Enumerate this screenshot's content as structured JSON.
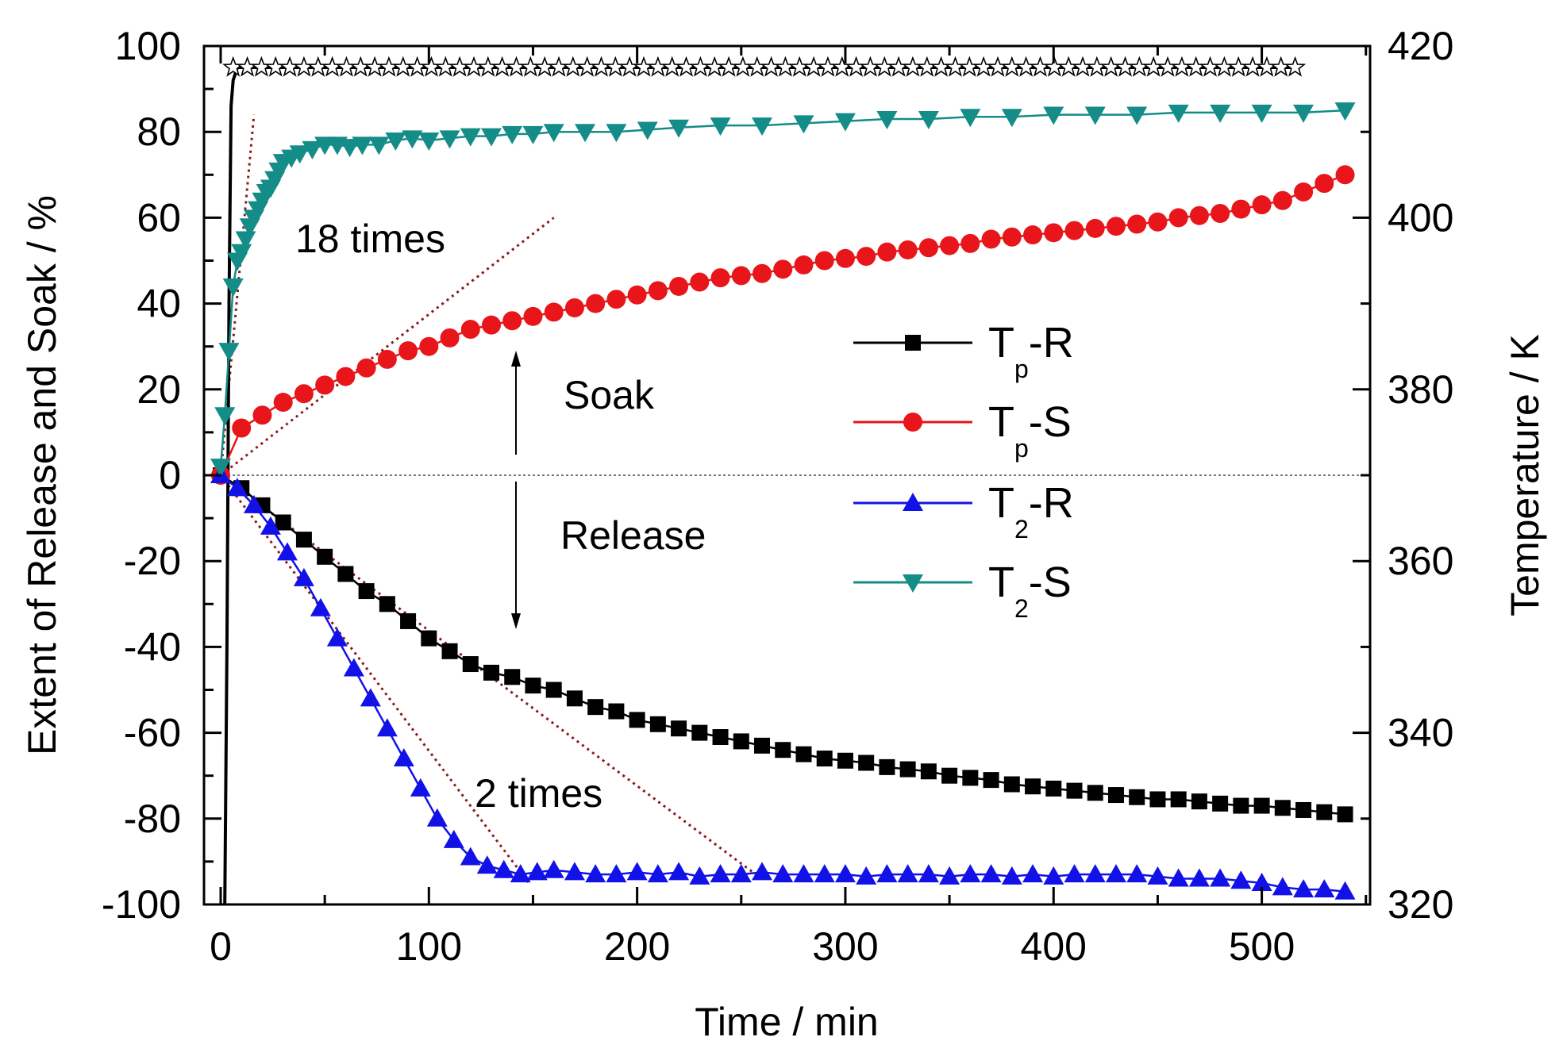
{
  "chart_data": {
    "type": "line",
    "title": "",
    "xlabel": "Time / min",
    "ylabel": "Extent of Release and Soak / %",
    "y2label": "Temperature / K",
    "xlim": [
      -8,
      552
    ],
    "ylim": [
      -100,
      100
    ],
    "y2lim": [
      320,
      420
    ],
    "xticks": [
      "0",
      "100",
      "200",
      "300",
      "400",
      "500"
    ],
    "yticks": [
      "100",
      "80",
      "60",
      "40",
      "20",
      "0",
      "-20",
      "-40",
      "-60",
      "-80",
      "-100"
    ],
    "y2ticks": [
      "420",
      "400",
      "380",
      "360",
      "340",
      "320"
    ],
    "grid": false,
    "zero_line": 0,
    "legend": {
      "position": "center-right",
      "entries": [
        {
          "main": "T",
          "sub": "p",
          "tail": "-R",
          "color": "#000000",
          "marker": "square"
        },
        {
          "main": "T",
          "sub": "p",
          "tail": "-S",
          "color": "#e8161b",
          "marker": "circle"
        },
        {
          "main": "T",
          "sub": "2",
          "tail": "-R",
          "color": "#1212e8",
          "marker": "triangle-up"
        },
        {
          "main": "T",
          "sub": "2",
          "tail": "-S",
          "color": "#148c88",
          "marker": "triangle-down"
        }
      ]
    },
    "annotations": {
      "times18": "18 times",
      "times2": "2 times",
      "soak": "Soak",
      "release": "Release"
    },
    "guide_lines": [
      {
        "name": "soak-initial-slope",
        "color": "#8b1a1a",
        "from": [
          0,
          0
        ],
        "to": [
          160,
          60
        ]
      },
      {
        "name": "soak-steep-slope",
        "color": "#8b1a1a",
        "from": [
          0,
          0
        ],
        "to": [
          16,
          84
        ]
      },
      {
        "name": "release-tp-slope",
        "color": "#8b1a1a",
        "from": [
          0,
          0
        ],
        "to": [
          257,
          -93
        ]
      },
      {
        "name": "release-t2-slope",
        "color": "#8b1a1a",
        "from": [
          0,
          0
        ],
        "to": [
          148,
          -95
        ]
      }
    ],
    "temperature_series": {
      "name": "Temperature",
      "marker": "star",
      "color": "#000000",
      "x_start": 6,
      "x_step": 6.8,
      "x_end": 516,
      "temperature_K": 417.5,
      "ramp": [
        [
          2,
          320
        ],
        [
          3,
          350
        ],
        [
          4,
          390
        ],
        [
          5,
          413
        ],
        [
          6,
          416
        ],
        [
          8,
          417.5
        ]
      ]
    },
    "series": [
      {
        "name": "Tp-R",
        "color": "#000000",
        "marker": "square",
        "x": [
          0,
          10,
          20,
          30,
          40,
          50,
          60,
          70,
          80,
          90,
          100,
          110,
          120,
          130,
          140,
          150,
          160,
          170,
          180,
          190,
          200,
          210,
          220,
          230,
          240,
          250,
          260,
          270,
          280,
          290,
          300,
          310,
          320,
          330,
          340,
          350,
          360,
          370,
          380,
          390,
          400,
          410,
          420,
          430,
          440,
          450,
          460,
          470,
          480,
          490,
          500,
          510,
          520,
          530,
          540
        ],
        "values": [
          0,
          -3,
          -7,
          -11,
          -15,
          -19,
          -23,
          -27,
          -30,
          -34,
          -38,
          -41,
          -44,
          -46,
          -47,
          -49,
          -50,
          -52,
          -54,
          -55,
          -57,
          -58,
          -59,
          -60,
          -61,
          -62,
          -63,
          -64,
          -65,
          -66,
          -66.5,
          -67,
          -68,
          -68.5,
          -69,
          -70,
          -70.5,
          -71,
          -72,
          -72.5,
          -73,
          -73.5,
          -74,
          -74.5,
          -75,
          -75.5,
          -75.5,
          -76,
          -76.5,
          -77,
          -77,
          -77.5,
          -78,
          -78.5,
          -79
        ]
      },
      {
        "name": "Tp-S",
        "color": "#e8161b",
        "marker": "circle",
        "x": [
          0,
          10,
          20,
          30,
          40,
          50,
          60,
          70,
          80,
          90,
          100,
          110,
          120,
          130,
          140,
          150,
          160,
          170,
          180,
          190,
          200,
          210,
          220,
          230,
          240,
          250,
          260,
          270,
          280,
          290,
          300,
          310,
          320,
          330,
          340,
          350,
          360,
          370,
          380,
          390,
          400,
          410,
          420,
          430,
          440,
          450,
          460,
          470,
          480,
          490,
          500,
          510,
          520,
          530,
          540
        ],
        "values": [
          0,
          11,
          14,
          17,
          19,
          21,
          23,
          25,
          27,
          29,
          30,
          32,
          34,
          35,
          36,
          37,
          38,
          39,
          40,
          41,
          42,
          43,
          44,
          45,
          46,
          46.5,
          47,
          48,
          49,
          50,
          50.5,
          51,
          52,
          52.5,
          53,
          53.5,
          54,
          55,
          55.5,
          56,
          56.5,
          57,
          57.5,
          58,
          58.5,
          59,
          60,
          60.5,
          61,
          62,
          63,
          64,
          66,
          68,
          70
        ]
      },
      {
        "name": "T2-R",
        "color": "#1212e8",
        "marker": "triangle-up",
        "x": [
          0,
          8,
          16,
          24,
          32,
          40,
          48,
          56,
          64,
          72,
          80,
          88,
          96,
          104,
          112,
          120,
          128,
          136,
          144,
          152,
          160,
          170,
          180,
          190,
          200,
          210,
          220,
          230,
          240,
          250,
          260,
          270,
          280,
          290,
          300,
          310,
          320,
          330,
          340,
          350,
          360,
          370,
          380,
          390,
          400,
          410,
          420,
          430,
          440,
          450,
          460,
          470,
          480,
          490,
          500,
          510,
          520,
          530,
          540
        ],
        "values": [
          0,
          -3,
          -7,
          -12,
          -18,
          -24,
          -31,
          -38,
          -45,
          -52,
          -59,
          -66,
          -73,
          -80,
          -85,
          -89,
          -91,
          -92,
          -93,
          -92.5,
          -92,
          -92.5,
          -93,
          -93,
          -92.5,
          -93,
          -92.5,
          -93.5,
          -93,
          -93,
          -92.5,
          -93,
          -93,
          -93,
          -93,
          -93.5,
          -93,
          -93,
          -93,
          -93.5,
          -93,
          -93,
          -93.5,
          -93,
          -93.5,
          -93,
          -93,
          -93,
          -93,
          -93.5,
          -94,
          -94,
          -94,
          -94.5,
          -95,
          -96,
          -96.5,
          -96.5,
          -97
        ]
      },
      {
        "name": "T2-S",
        "color": "#148c88",
        "marker": "triangle-down",
        "x": [
          0,
          2,
          4,
          6,
          8,
          10,
          12,
          14,
          16,
          18,
          20,
          22,
          24,
          26,
          28,
          30,
          34,
          38,
          44,
          50,
          56,
          62,
          68,
          76,
          84,
          92,
          100,
          110,
          120,
          130,
          140,
          150,
          160,
          175,
          190,
          205,
          220,
          240,
          260,
          280,
          300,
          320,
          340,
          360,
          380,
          400,
          420,
          440,
          460,
          480,
          500,
          520,
          540
        ],
        "values": [
          2,
          14,
          29,
          44,
          50,
          52,
          55,
          58,
          60,
          62,
          64,
          66,
          67,
          69,
          71,
          73,
          74,
          75,
          76,
          77,
          77,
          76.5,
          77,
          77,
          78,
          78.5,
          78,
          78.5,
          79,
          79,
          79.5,
          79.5,
          80,
          80,
          80,
          80.5,
          81,
          81.5,
          81.5,
          82,
          82.5,
          83,
          83,
          83.5,
          83.5,
          84,
          84,
          84,
          84.5,
          84.5,
          84.5,
          84.5,
          85
        ]
      }
    ]
  }
}
